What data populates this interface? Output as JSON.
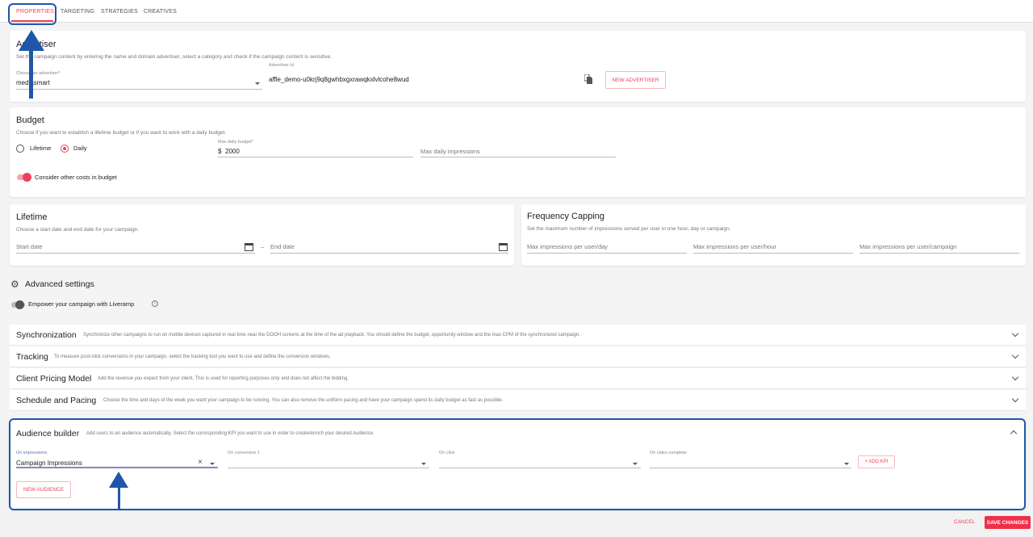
{
  "tabs": [
    "PROPERTIES",
    "TARGETING",
    "STRATEGIES",
    "CREATIVES"
  ],
  "advertiser": {
    "title": "Advertiser",
    "desc": "Set the campaign content by entering the name and domain advertiser, select a category and check if the campaign content is sensitive.",
    "choose_label": "Choose an advertiser*",
    "choose_value": "mediasmart",
    "id_label": "Advertiser Id",
    "id_value": "affle_demo-u0krj9q8gwhbxgxrawqkxlvlcohe8wud",
    "new_button": "NEW ADVERTISER"
  },
  "budget": {
    "title": "Budget",
    "desc": "Choose if you want to establish a lifetime budget or if you want to work with a daily budget.",
    "opt_lifetime": "Lifetime",
    "opt_daily": "Daily",
    "selected": "Daily",
    "max_label": "Max daily budget*",
    "currency": "$",
    "max_value": "2000",
    "impr_placeholder": "Max daily impressions",
    "toggle_label": "Consider other costs in budget",
    "toggle_on": true
  },
  "lifetime": {
    "title": "Lifetime",
    "desc": "Choose a start date and end date for your campaign.",
    "start_placeholder": "Start date",
    "sep": "–",
    "end_placeholder": "End date"
  },
  "frequency": {
    "title": "Frequency Capping",
    "desc": "Set the maximum number of impressions served per user in one hour, day or campaign.",
    "day": "Max impressions per user/day",
    "hour": "Max impressions per user/hour",
    "campaign": "Max impressions per user/campaign"
  },
  "advanced": {
    "title": "Advanced settings",
    "liveramp": "Empower your campaign with Liveramp",
    "liveramp_on": false
  },
  "accordions": [
    {
      "title": "Synchronization",
      "desc": "Synchronize other campaigns to run on mobile devices captured in real time near the DOOH screens at the time of the ad playback. You should define the budget, opportunity window and the max CPM of the synchronized campaign."
    },
    {
      "title": "Tracking",
      "desc": "To measure post-click conversions in your campaign, select the tracking tool you want to use and define the conversion windows."
    },
    {
      "title": "Client Pricing Model",
      "desc": "Add the revenue you expect from your client. This is used for reporting purposes only and does not affect the bidding."
    },
    {
      "title": "Schedule and Pacing",
      "desc": "Choose the time and days of the week you want your campaign to be running. You can also remove the uniform pacing and have your campaign spend its daily budget as fast as possible."
    }
  ],
  "audience": {
    "title": "Audience builder",
    "desc": "Add users to an audience automatically. Select the corresponding KPI you want to use in order to create/enrich your desired Audience.",
    "impr_label": "On impressions",
    "impr_value": "Campaign Impressions",
    "conv_label": "On conversion 1",
    "click_label": "On click",
    "video_label": "On video complete",
    "add_kpi": "+ ADD KPI",
    "new_audience": "NEW AUDIENCE"
  },
  "footer": {
    "cancel": "CANCEL",
    "save": "SAVE CHANGES"
  },
  "colors": {
    "accent": "#f0405a",
    "annotation": "#1f57a8"
  }
}
